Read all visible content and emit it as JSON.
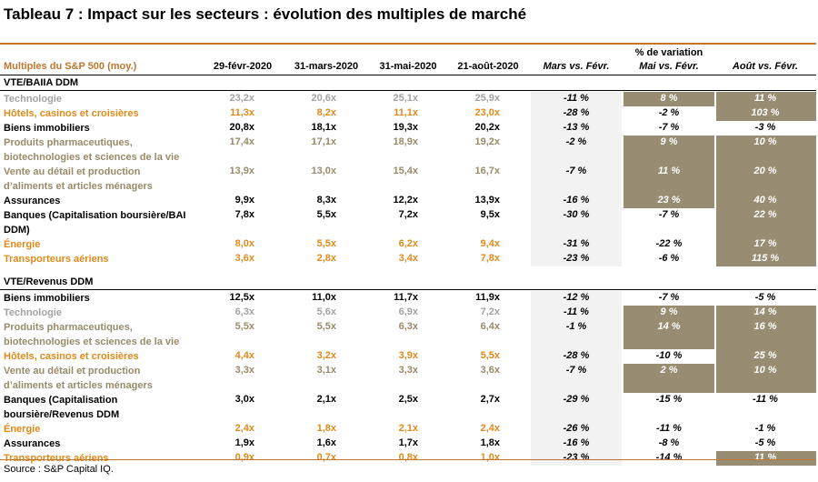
{
  "title": "Tableau 7 : Impact sur les secteurs : évolution des multiples de marché",
  "header": {
    "label": "Multiples du S&P 500 (moy.)",
    "dates": [
      "29-févr-2020",
      "31-mars-2020",
      "31-mai-2020",
      "21-août-2020"
    ],
    "variation_title": "% de variation",
    "variations": [
      "Mars vs. Févr.",
      "Mai vs. Févr.",
      "Août vs. Févr."
    ]
  },
  "colors": {
    "orange": "#e08a1c",
    "gray": "#a3a3a3",
    "tan": "#9a8a6a",
    "black": "#000000",
    "highlight": "#988d72",
    "rule": "#c0762e"
  },
  "sections": [
    {
      "title": "VTE/BAIIA DDM",
      "rows": [
        {
          "label": "Technologie",
          "color": "gray",
          "v": [
            "23,2x",
            "20,6x",
            "25,1x",
            "25,9x"
          ],
          "p": [
            "-11 %",
            "8 %",
            "11 %"
          ],
          "hl": [
            false,
            true,
            true
          ],
          "lines": 1
        },
        {
          "label": "Hôtels, casinos et croisières",
          "color": "orange",
          "v": [
            "11,3x",
            "8,2x",
            "11,1x",
            "23,0x"
          ],
          "p": [
            "-28 %",
            "-2 %",
            "103 %"
          ],
          "hl": [
            false,
            false,
            true
          ],
          "lines": 1
        },
        {
          "label": "Biens immobiliers",
          "color": "black",
          "v": [
            "20,8x",
            "18,1x",
            "19,3x",
            "20,2x"
          ],
          "p": [
            "-13 %",
            "-7 %",
            "-3 %"
          ],
          "hl": [
            false,
            false,
            false
          ],
          "lines": 1
        },
        {
          "label": "Produits pharmaceutiques, biotechnologies et sciences de la vie",
          "color": "tan",
          "v": [
            "17,4x",
            "17,1x",
            "18,9x",
            "19,2x"
          ],
          "p": [
            "-2 %",
            "9 %",
            "10 %"
          ],
          "hl": [
            false,
            true,
            true
          ],
          "lines": 2
        },
        {
          "label": "Vente au détail et production d’aliments et articles ménagers",
          "color": "tan",
          "v": [
            "13,9x",
            "13,0x",
            "15,4x",
            "16,7x"
          ],
          "p": [
            "-7 %",
            "11 %",
            "20 %"
          ],
          "hl": [
            false,
            true,
            true
          ],
          "lines": 2
        },
        {
          "label": "Assurances",
          "color": "black",
          "v": [
            "9,9x",
            "8,3x",
            "12,2x",
            "13,9x"
          ],
          "p": [
            "-16 %",
            "23 %",
            "40 %"
          ],
          "hl": [
            false,
            true,
            true
          ],
          "lines": 1
        },
        {
          "label": "Banques (Capitalisation boursière/BAI DDM)",
          "color": "black",
          "v": [
            "7,8x",
            "5,5x",
            "7,2x",
            "9,5x"
          ],
          "p": [
            "-30 %",
            "-7 %",
            "22 %"
          ],
          "hl": [
            false,
            false,
            true
          ],
          "lines": 2
        },
        {
          "label": "Énergie",
          "color": "orange",
          "v": [
            "8,0x",
            "5,5x",
            "6,2x",
            "9,4x"
          ],
          "p": [
            "-31 %",
            "-22 %",
            "17 %"
          ],
          "hl": [
            false,
            false,
            true
          ],
          "lines": 1
        },
        {
          "label": "Transporteurs aériens",
          "color": "orange",
          "v": [
            "3,6x",
            "2,8x",
            "3,4x",
            "7,8x"
          ],
          "p": [
            "-23 %",
            "-6 %",
            "115 %"
          ],
          "hl": [
            false,
            false,
            true
          ],
          "lines": 1
        }
      ]
    },
    {
      "title": "VTE/Revenus DDM",
      "rows": [
        {
          "label": "Biens immobiliers",
          "color": "black",
          "v": [
            "12,5x",
            "11,0x",
            "11,7x",
            "11,9x"
          ],
          "p": [
            "-12 %",
            "-7 %",
            "-5 %"
          ],
          "hl": [
            false,
            false,
            false
          ],
          "lines": 1
        },
        {
          "label": "Technologie",
          "color": "gray",
          "v": [
            "6,3x",
            "5,6x",
            "6,9x",
            "7,2x"
          ],
          "p": [
            "-11 %",
            "9 %",
            "14 %"
          ],
          "hl": [
            false,
            true,
            true
          ],
          "lines": 1
        },
        {
          "label": "Produits pharmaceutiques, biotechnologies et sciences de la vie",
          "color": "tan",
          "v": [
            "5,5x",
            "5,5x",
            "6,3x",
            "6,4x"
          ],
          "p": [
            "-1 %",
            "14 %",
            "16 %"
          ],
          "hl": [
            false,
            true,
            true
          ],
          "lines": 2
        },
        {
          "label": "Hôtels, casinos et croisières",
          "color": "orange",
          "v": [
            "4,4x",
            "3,2x",
            "3,9x",
            "5,5x"
          ],
          "p": [
            "-28 %",
            "-10 %",
            "25 %"
          ],
          "hl": [
            false,
            false,
            true
          ],
          "lines": 1
        },
        {
          "label": "Vente au détail et production d’aliments et articles ménagers",
          "color": "tan",
          "v": [
            "3,3x",
            "3,1x",
            "3,3x",
            "3,6x"
          ],
          "p": [
            "-7 %",
            "2 %",
            "10 %"
          ],
          "hl": [
            false,
            true,
            true
          ],
          "lines": 2
        },
        {
          "label": "Banques (Capitalisation boursière/Revenus DDM",
          "color": "black",
          "v": [
            "3,0x",
            "2,1x",
            "2,5x",
            "2,7x"
          ],
          "p": [
            "-29 %",
            "-15 %",
            "-11 %"
          ],
          "hl": [
            false,
            false,
            false
          ],
          "lines": 2
        },
        {
          "label": "Énergie",
          "color": "orange",
          "v": [
            "2,4x",
            "1,8x",
            "2,1x",
            "2,4x"
          ],
          "p": [
            "-26 %",
            "-11 %",
            "-1 %"
          ],
          "hl": [
            false,
            false,
            false
          ],
          "lines": 1
        },
        {
          "label": "Assurances",
          "color": "black",
          "v": [
            "1,9x",
            "1,6x",
            "1,7x",
            "1,8x"
          ],
          "p": [
            "-16 %",
            "-8 %",
            "-5 %"
          ],
          "hl": [
            false,
            false,
            false
          ],
          "lines": 1
        },
        {
          "label": "Transporteurs aériens",
          "color": "orange",
          "v": [
            "0,9x",
            "0,7x",
            "0,8x",
            "1,0x"
          ],
          "p": [
            "-23 %",
            "-14 %",
            "11 %"
          ],
          "hl": [
            false,
            false,
            true
          ],
          "lines": 1
        }
      ]
    }
  ],
  "source": "Source : S&P Capital IQ."
}
